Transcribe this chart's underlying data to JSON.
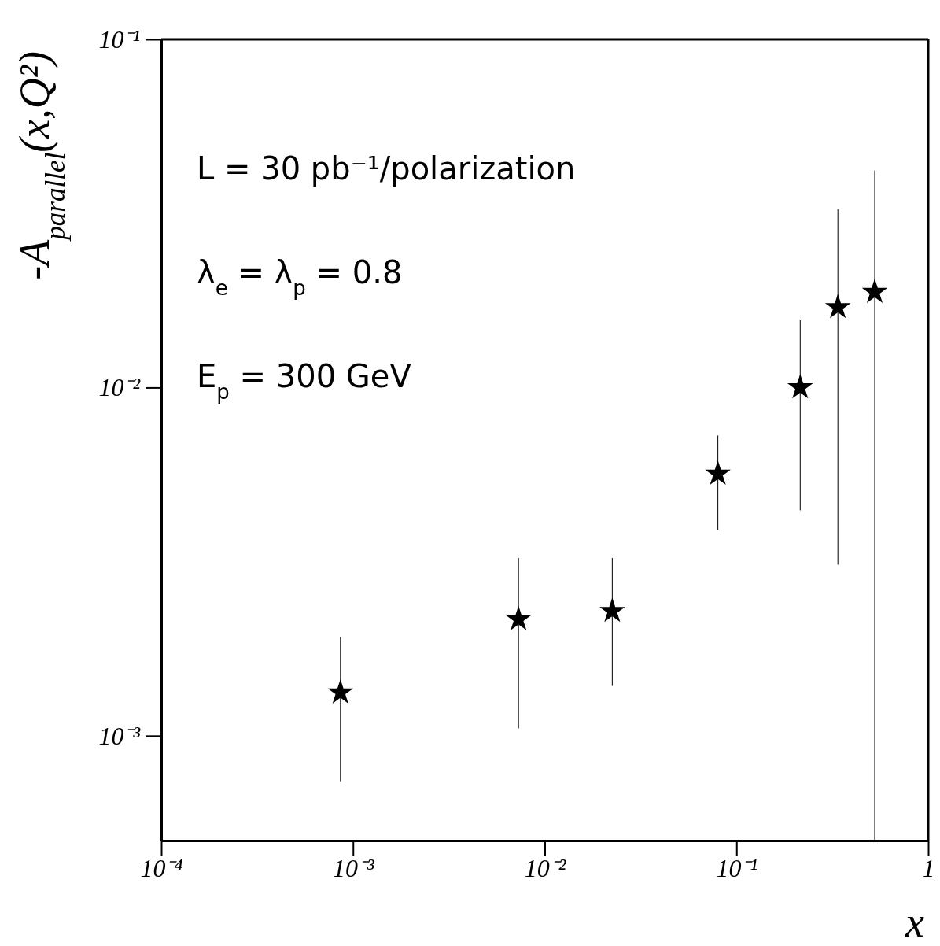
{
  "chart_data": {
    "type": "scatter",
    "xlabel": "x",
    "ylabel": "-A$_{parallel}$(x,Q²)",
    "annotations": [
      "L = 30 pb⁻¹/polarization",
      "λ$_{e}$ = λ$_{p}$ = 0.8",
      "E$_{p}$ = 300 GeV"
    ],
    "x": [
      0.00086,
      0.0073,
      0.0225,
      0.08,
      0.215,
      0.338,
      0.526
    ],
    "series": [
      {
        "color": "#000000",
        "values": [
          0.00133,
          0.00216,
          0.00228,
          0.00565,
          0.01,
          0.017,
          0.0188
        ],
        "errors": [
          [
            0.00074,
            0.00192
          ],
          [
            0.00105,
            0.00324
          ],
          [
            0.00139,
            0.00324
          ],
          [
            0.0039,
            0.00728
          ],
          [
            0.00444,
            0.0156
          ],
          [
            0.0031,
            0.0325
          ],
          [
            0.0005,
            0.042
          ]
        ]
      }
    ],
    "log": "xy",
    "xlim": [
      0.0001,
      1
    ],
    "ylim": [
      0.0005,
      0.1
    ],
    "xticks": [
      {
        "value": 0.0001,
        "label": "10⁻⁴"
      },
      {
        "value": 0.001,
        "label": "10⁻³"
      },
      {
        "value": 0.01,
        "label": "10⁻²"
      },
      {
        "value": 0.1,
        "label": "10⁻¹"
      },
      1
    ],
    "yticks": [
      {
        "value": 0.001,
        "label": "10⁻³"
      },
      {
        "value": 0.01,
        "label": "10⁻²"
      },
      {
        "value": 0.1,
        "label": "10⁻¹"
      }
    ],
    "marker": "star",
    "grid": false
  }
}
